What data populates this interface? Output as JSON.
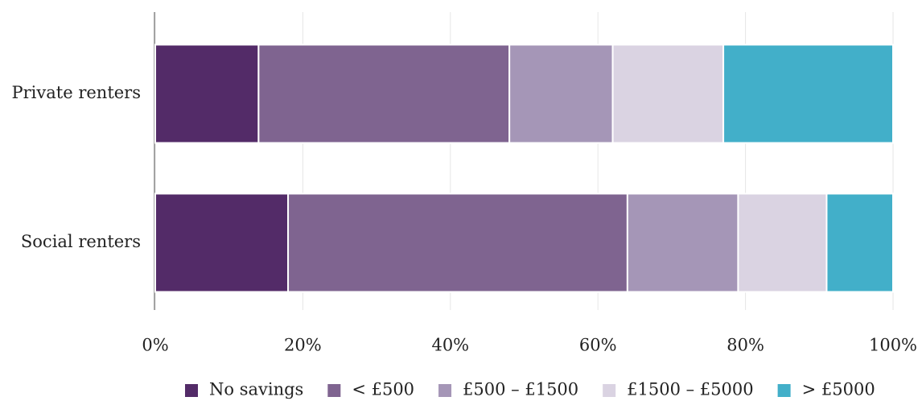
{
  "chart_data": {
    "type": "stacked_bar_horizontal",
    "categories": [
      "Private renters",
      "Social renters"
    ],
    "series": [
      {
        "name": "No savings",
        "color": "#532b68",
        "values": [
          14,
          18
        ]
      },
      {
        "name": "< £500",
        "color": "#7f6490",
        "values": [
          34,
          46
        ]
      },
      {
        "name": "£500 – £1500",
        "color": "#a596b7",
        "values": [
          14,
          15
        ]
      },
      {
        "name": "£1500 – £5000",
        "color": "#dad3e2",
        "values": [
          15,
          12
        ]
      },
      {
        "name": "> £5000",
        "color": "#42afc9",
        "values": [
          23,
          9
        ]
      }
    ],
    "xlim": [
      0,
      100
    ],
    "xticks": [
      {
        "value": 0,
        "label": "0%"
      },
      {
        "value": 20,
        "label": "20%"
      },
      {
        "value": 40,
        "label": "40%"
      },
      {
        "value": 60,
        "label": "60%"
      },
      {
        "value": 80,
        "label": "80%"
      },
      {
        "value": 100,
        "label": "100%"
      }
    ],
    "grid": true,
    "legend": "bottom"
  }
}
